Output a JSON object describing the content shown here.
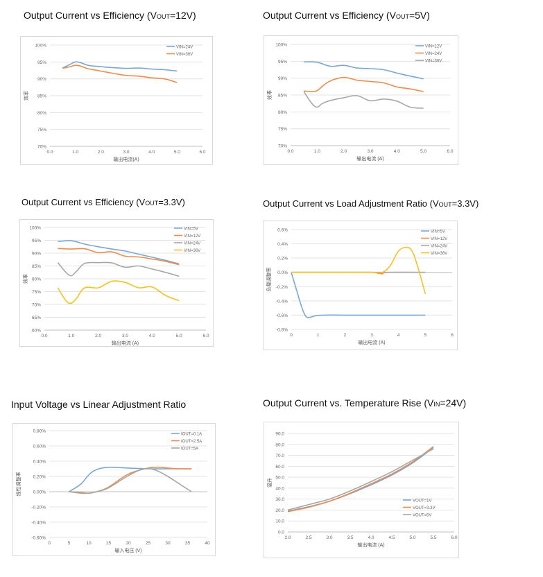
{
  "titles": [
    {
      "main": "Output Current vs Efficiency (V",
      "sub": "OUT",
      "tail": "=12V)"
    },
    {
      "main": "Output Current vs Efficiency (V",
      "sub": "OUT",
      "tail": "=5V)"
    },
    {
      "main": "Output Current vs Efficiency (V",
      "sub": "OUT",
      "tail": "=3.3V)"
    },
    {
      "main": "Output Current vs Load Adjustment Ratio (V",
      "sub": "OUT",
      "tail": "=3.3V)"
    },
    {
      "main": "Input Voltage vs Linear Adjustment Ratio",
      "sub": "",
      "tail": ""
    },
    {
      "main": "Output Current vs. Temperature Rise (V",
      "sub": "IN",
      "tail": "=24V)"
    }
  ],
  "colors": {
    "blue": "#7aa7d3",
    "orange": "#ee8c4e",
    "gray": "#a7a7a7",
    "yellow": "#f6c21e",
    "grid": "#e3e3e3",
    "axis": "#bfbfbf",
    "text": "#666666"
  },
  "chart_data": [
    {
      "type": "line",
      "xlabel": "输出电流(A)",
      "ylabel": "效率",
      "xlim": [
        0,
        6
      ],
      "xticks": [
        0,
        1,
        2,
        3,
        4,
        5,
        6
      ],
      "xtick_labels": [
        "0.0",
        "1.0",
        "2.0",
        "3.0",
        "4.0",
        "5.0",
        "6.0"
      ],
      "ylim": [
        70,
        100
      ],
      "yticks": [
        70,
        75,
        80,
        85,
        90,
        95,
        100
      ],
      "ytick_labels": [
        "70%",
        "75%",
        "80%",
        "85%",
        "90%",
        "95%",
        "100%"
      ],
      "legend": "top-right",
      "series": [
        {
          "name": "VIN=24V",
          "color": "blue",
          "x": [
            0.5,
            0.8,
            1.0,
            1.2,
            1.5,
            2.0,
            2.5,
            3.0,
            3.5,
            4.0,
            4.5,
            5.0
          ],
          "y": [
            93.2,
            94.3,
            95.0,
            94.8,
            94.0,
            93.6,
            93.3,
            93.1,
            93.2,
            92.9,
            92.7,
            92.3
          ]
        },
        {
          "name": "VIN=36V",
          "color": "orange",
          "x": [
            0.5,
            0.8,
            1.0,
            1.2,
            1.5,
            2.0,
            2.5,
            3.0,
            3.5,
            4.0,
            4.5,
            5.0
          ],
          "y": [
            93.1,
            93.6,
            94.0,
            93.8,
            93.0,
            92.3,
            91.6,
            91.0,
            90.8,
            90.3,
            90.0,
            88.9
          ]
        }
      ]
    },
    {
      "type": "line",
      "xlabel": "输出电流 (A)",
      "ylabel": "效率",
      "xlim": [
        0,
        6
      ],
      "xticks": [
        0,
        1,
        2,
        3,
        4,
        5,
        6
      ],
      "xtick_labels": [
        "0.0",
        "1.0",
        "2.0",
        "3.0",
        "4.0",
        "5.0",
        "6.0"
      ],
      "ylim": [
        70,
        100
      ],
      "yticks": [
        70,
        75,
        80,
        85,
        90,
        95,
        100
      ],
      "ytick_labels": [
        "70%",
        "75%",
        "80%",
        "85%",
        "90%",
        "95%",
        "100%"
      ],
      "legend": "top-right",
      "series": [
        {
          "name": "VIN=12V",
          "color": "blue",
          "x": [
            0.5,
            1.0,
            1.5,
            2.0,
            2.5,
            3.0,
            3.5,
            4.0,
            4.5,
            5.0
          ],
          "y": [
            94.8,
            94.7,
            93.5,
            93.8,
            93.0,
            92.8,
            92.5,
            91.5,
            90.6,
            89.8
          ]
        },
        {
          "name": "VIN=24V",
          "color": "orange",
          "x": [
            0.5,
            0.8,
            1.0,
            1.2,
            1.5,
            2.0,
            2.5,
            3.0,
            3.5,
            4.0,
            4.5,
            5.0
          ],
          "y": [
            86.2,
            86.0,
            86.3,
            87.6,
            89.2,
            90.2,
            89.4,
            89.0,
            88.6,
            87.4,
            86.8,
            86.0
          ]
        },
        {
          "name": "VIN=36V",
          "color": "gray",
          "x": [
            0.5,
            0.8,
            1.0,
            1.2,
            1.5,
            2.0,
            2.5,
            3.0,
            3.5,
            4.0,
            4.5,
            5.0
          ],
          "y": [
            86.0,
            82.5,
            81.4,
            82.5,
            83.4,
            84.2,
            84.8,
            83.3,
            83.8,
            83.2,
            81.4,
            81.1
          ]
        }
      ]
    },
    {
      "type": "line",
      "xlabel": "输出电流 (A)",
      "ylabel": "效率",
      "xlim": [
        0,
        6
      ],
      "xticks": [
        0,
        1,
        2,
        3,
        4,
        5,
        6
      ],
      "xtick_labels": [
        "0.0",
        "1.0",
        "2.0",
        "3.0",
        "4.0",
        "5.0",
        "6.0"
      ],
      "ylim": [
        60,
        100
      ],
      "yticks": [
        60,
        65,
        70,
        75,
        80,
        85,
        90,
        95,
        100
      ],
      "ytick_labels": [
        "60%",
        "65%",
        "70%",
        "75%",
        "80%",
        "85%",
        "90%",
        "95%",
        "100%"
      ],
      "legend": "top-right",
      "series": [
        {
          "name": "VIN=5V",
          "color": "blue",
          "x": [
            0.5,
            1.0,
            1.5,
            2.0,
            2.5,
            3.0,
            3.5,
            4.0,
            4.5,
            5.0
          ],
          "y": [
            94.5,
            94.8,
            93.5,
            92.5,
            91.6,
            90.8,
            89.6,
            88.4,
            87.2,
            85.8
          ]
        },
        {
          "name": "VIN=12V",
          "color": "orange",
          "x": [
            0.5,
            1.0,
            1.5,
            2.0,
            2.5,
            3.0,
            3.5,
            4.0,
            4.5,
            5.0
          ],
          "y": [
            91.8,
            91.6,
            91.7,
            90.2,
            90.5,
            88.8,
            88.5,
            87.7,
            86.8,
            85.5
          ]
        },
        {
          "name": "VIN=24V",
          "color": "gray",
          "x": [
            0.5,
            0.8,
            1.0,
            1.2,
            1.5,
            2.0,
            2.5,
            3.0,
            3.5,
            4.0,
            4.5,
            5.0
          ],
          "y": [
            86.3,
            82.5,
            81.2,
            83.0,
            86.0,
            86.3,
            86.2,
            84.5,
            85.0,
            83.8,
            82.5,
            81.0
          ]
        },
        {
          "name": "VIN=36V",
          "color": "yellow",
          "x": [
            0.5,
            0.8,
            1.0,
            1.2,
            1.5,
            2.0,
            2.5,
            3.0,
            3.5,
            4.0,
            4.5,
            5.0
          ],
          "y": [
            76.5,
            71.5,
            70.5,
            72.5,
            76.5,
            76.5,
            79.0,
            78.6,
            76.5,
            76.8,
            73.5,
            71.5
          ]
        }
      ]
    },
    {
      "type": "line",
      "xlabel": "输出电流 (A)",
      "ylabel": "负载调整率",
      "xlim": [
        0,
        6
      ],
      "xticks": [
        0,
        1,
        2,
        3,
        4,
        5,
        6
      ],
      "xtick_labels": [
        "0",
        "1",
        "2",
        "3",
        "4",
        "5",
        "6"
      ],
      "ylim": [
        -0.8,
        0.6
      ],
      "yticks": [
        -0.8,
        -0.6,
        -0.4,
        -0.2,
        0,
        0.2,
        0.4,
        0.6
      ],
      "ytick_labels": [
        "-0.8%",
        "-0.6%",
        "-0.4%",
        "-0.2%",
        "0.0%",
        "0.2%",
        "0.4%",
        "0.6%"
      ],
      "legend": "top-right",
      "series": [
        {
          "name": "VIN=5V",
          "color": "blue",
          "x": [
            0,
            0.2,
            0.4,
            0.55,
            0.7,
            0.9,
            1.2,
            2,
            3,
            4,
            5
          ],
          "y": [
            0,
            -0.25,
            -0.5,
            -0.62,
            -0.63,
            -0.61,
            -0.6,
            -0.6,
            -0.6,
            -0.6,
            -0.6
          ]
        },
        {
          "name": "VIN=12V",
          "color": "orange",
          "x": [
            0,
            1,
            2,
            3,
            3.2,
            3.4,
            3.6,
            5
          ],
          "y": [
            0,
            0,
            0,
            0,
            -0.01,
            -0.02,
            0,
            0
          ]
        },
        {
          "name": "VIN=24V",
          "color": "gray",
          "x": [
            0,
            1,
            2,
            3,
            4,
            5
          ],
          "y": [
            0,
            0,
            0,
            0,
            0,
            0
          ]
        },
        {
          "name": "VIN=36V",
          "color": "yellow",
          "x": [
            0,
            1,
            2,
            3,
            3.4,
            3.7,
            4.0,
            4.3,
            4.5,
            4.7,
            5.0
          ],
          "y": [
            0,
            0,
            0,
            0,
            0,
            0.1,
            0.3,
            0.35,
            0.3,
            0.1,
            -0.3
          ]
        }
      ]
    },
    {
      "type": "line",
      "xlabel": "输入电压 (V)",
      "ylabel": "线性调整率",
      "xlim": [
        0,
        40
      ],
      "xticks": [
        0,
        5,
        10,
        15,
        20,
        25,
        30,
        35,
        40
      ],
      "xtick_labels": [
        "0",
        "5",
        "10",
        "15",
        "20",
        "25",
        "30",
        "35",
        "40"
      ],
      "ylim": [
        -0.6,
        0.8
      ],
      "yticks": [
        -0.6,
        -0.4,
        -0.2,
        0,
        0.2,
        0.4,
        0.6,
        0.8
      ],
      "ytick_labels": [
        "-0.60%",
        "-0.40%",
        "-0.20%",
        "0.00%",
        "0.20%",
        "0.40%",
        "0.60%",
        "0.80%"
      ],
      "legend": "top-right",
      "series": [
        {
          "name": "IOUT=0.1A",
          "color": "blue",
          "x": [
            5,
            8,
            10,
            12,
            15,
            20,
            25,
            30,
            36
          ],
          "y": [
            0,
            0.1,
            0.22,
            0.29,
            0.32,
            0.31,
            0.3,
            0.3,
            0.3
          ]
        },
        {
          "name": "IOUT=2.5A",
          "color": "orange",
          "x": [
            5,
            8,
            10,
            12,
            15,
            20,
            25,
            28,
            30,
            33,
            36
          ],
          "y": [
            0,
            -0.01,
            -0.02,
            0,
            0.06,
            0.23,
            0.31,
            0.32,
            0.31,
            0.3,
            0.3
          ]
        },
        {
          "name": "IOUT=5A",
          "color": "gray",
          "x": [
            5,
            8,
            10,
            12,
            15,
            20,
            24,
            27,
            30,
            33,
            36
          ],
          "y": [
            0,
            -0.02,
            -0.02,
            0,
            0.05,
            0.21,
            0.3,
            0.28,
            0.2,
            0.1,
            0
          ]
        }
      ]
    },
    {
      "type": "line",
      "xlabel": "输出电流 (A)",
      "ylabel": "温升",
      "xlim": [
        2,
        6
      ],
      "xticks": [
        2,
        2.5,
        3,
        3.5,
        4,
        4.5,
        5,
        5.5,
        6
      ],
      "xtick_labels": [
        "2.0",
        "2.5",
        "3.0",
        "3.5",
        "4.0",
        "4.5",
        "5.0",
        "5.5",
        "6.0"
      ],
      "ylim": [
        0,
        90
      ],
      "yticks": [
        0,
        10,
        20,
        30,
        40,
        50,
        60,
        70,
        80,
        90
      ],
      "ytick_labels": [
        "0.0",
        "10.0",
        "20.0",
        "30.0",
        "40.0",
        "50.0",
        "60.0",
        "70.0",
        "80.0",
        "90.0"
      ],
      "legend": "bottom-right",
      "series": [
        {
          "name": "VOUT=1V",
          "color": "blue",
          "x": [
            2.0,
            2.5,
            3.0,
            3.5,
            4.0,
            4.5,
            5.0,
            5.5
          ],
          "y": [
            19,
            23,
            28,
            35,
            43,
            52,
            63,
            77
          ]
        },
        {
          "name": "VOUT=3.3V",
          "color": "orange",
          "x": [
            2.0,
            2.5,
            3.0,
            3.5,
            4.0,
            4.5,
            5.0,
            5.5
          ],
          "y": [
            18.5,
            22.5,
            28,
            35.5,
            44,
            53,
            64,
            78
          ]
        },
        {
          "name": "VOUT=5V",
          "color": "gray",
          "x": [
            2.0,
            2.5,
            3.0,
            3.5,
            4.0,
            4.5,
            5.0,
            5.5
          ],
          "y": [
            20,
            25,
            30,
            37.5,
            46,
            55,
            65.5,
            76
          ]
        }
      ]
    }
  ]
}
